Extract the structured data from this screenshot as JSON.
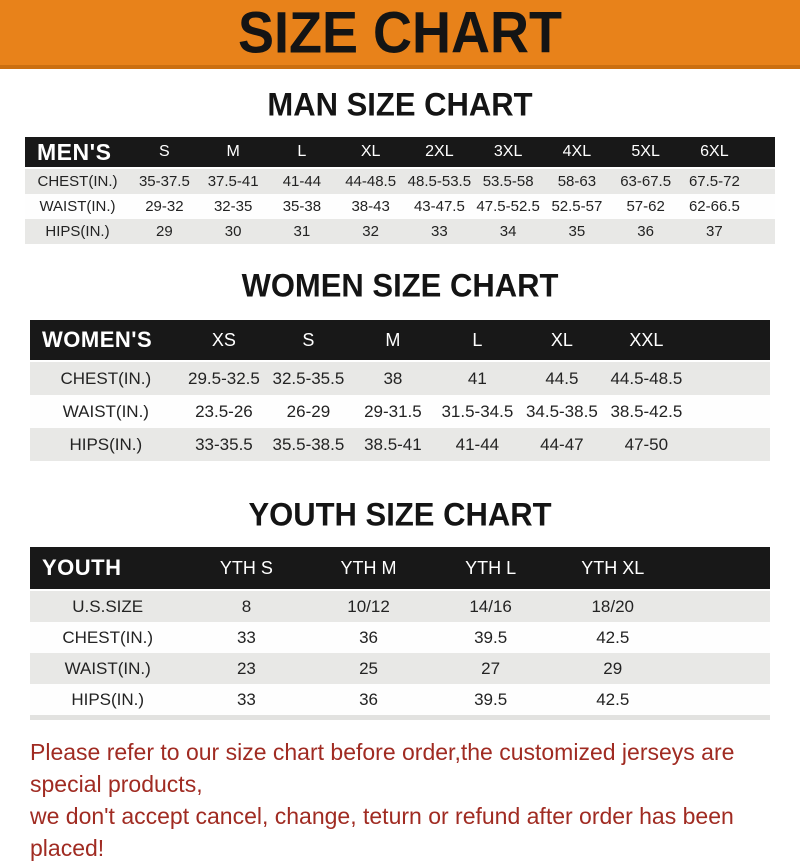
{
  "banner": {
    "title": "SIZE CHART",
    "bg_color": "#E8821A"
  },
  "sections": [
    {
      "heading": "MAN SIZE CHART",
      "table": {
        "header_label": "MEN'S",
        "columns": [
          "S",
          "M",
          "L",
          "XL",
          "2XL",
          "3XL",
          "4XL",
          "5XL",
          "6XL"
        ],
        "rows": [
          {
            "label": "CHEST(IN.)",
            "values": [
              "35-37.5",
              "37.5-41",
              "41-44",
              "44-48.5",
              "48.5-53.5",
              "53.5-58",
              "58-63",
              "63-67.5",
              "67.5-72"
            ]
          },
          {
            "label": "WAIST(IN.)",
            "values": [
              "29-32",
              "32-35",
              "35-38",
              "38-43",
              "43-47.5",
              "47.5-52.5",
              "52.5-57",
              "57-62",
              "62-66.5"
            ]
          },
          {
            "label": "HIPS(IN.)",
            "values": [
              "29",
              "30",
              "31",
              "32",
              "33",
              "34",
              "35",
              "36",
              "37"
            ]
          }
        ]
      }
    },
    {
      "heading": "WOMEN SIZE CHART",
      "table": {
        "header_label": "WOMEN'S",
        "columns": [
          "XS",
          "S",
          "M",
          "L",
          "XL",
          "XXL"
        ],
        "rows": [
          {
            "label": "CHEST(IN.)",
            "values": [
              "29.5-32.5",
              "32.5-35.5",
              "38",
              "41",
              "44.5",
              "44.5-48.5"
            ]
          },
          {
            "label": "WAIST(IN.)",
            "values": [
              "23.5-26",
              "26-29",
              "29-31.5",
              "31.5-34.5",
              "34.5-38.5",
              "38.5-42.5"
            ]
          },
          {
            "label": "HIPS(IN.)",
            "values": [
              "33-35.5",
              "35.5-38.5",
              "38.5-41",
              "41-44",
              "44-47",
              "47-50"
            ]
          }
        ]
      }
    },
    {
      "heading": "YOUTH SIZE CHART",
      "table": {
        "header_label": "YOUTH",
        "columns": [
          "YTH S",
          "YTH M",
          "YTH L",
          "YTH XL"
        ],
        "rows": [
          {
            "label": "U.S.SIZE",
            "values": [
              "8",
              "10/12",
              "14/16",
              "18/20"
            ]
          },
          {
            "label": "CHEST(IN.)",
            "values": [
              "33",
              "36",
              "39.5",
              "42.5"
            ]
          },
          {
            "label": "WAIST(IN.)",
            "values": [
              "23",
              "25",
              "27",
              "29"
            ]
          },
          {
            "label": "HIPS(IN.)",
            "values": [
              "33",
              "36",
              "39.5",
              "42.5"
            ]
          }
        ]
      }
    }
  ],
  "footer": {
    "line1": "Please refer to our size chart before order,the customized jerseys are special products,",
    "line2": "we don't accept cancel, change, teturn or refund after order has been placed!",
    "text_color": "#A02B22"
  }
}
